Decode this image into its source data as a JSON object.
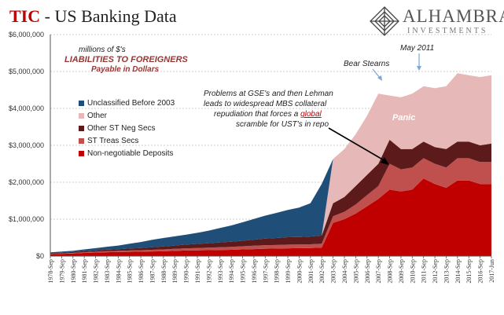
{
  "header": {
    "title_prefix": "TIC",
    "title_rest": " - US Banking Data"
  },
  "logo": {
    "brand": "ALHAMBRA",
    "sub": "INVESTMENTS",
    "icon": "alhambra-diamond-logo-icon"
  },
  "annotations": {
    "units": "millions of $'s",
    "subtitle_line1": "LIABILITIES TO FOREIGNERS",
    "subtitle_line2": "Payable in Dollars",
    "bear_stearns": "Bear Stearns",
    "may_2011": "May 2011",
    "panic": "Panic",
    "problems_line1": "Problems at GSE's and then Lehman",
    "problems_line2": "leads to widespread MBS collateral",
    "problems_line3_pre": "repudiation that forces a ",
    "problems_line3_emph": "global",
    "problems_line4": "scramble for UST's in repo"
  },
  "colors": {
    "unclassified": "#1f4e79",
    "other": "#e6b8b7",
    "other_st_neg": "#5c1a1a",
    "st_treas": "#c0504d",
    "non_negotiable": "#c00000",
    "title_red": "#c00000",
    "subtitle_red": "#953735"
  },
  "chart_data": {
    "type": "area",
    "stacked": true,
    "x": [
      "1978-Sep",
      "1979-Sep",
      "1980-Sep",
      "1981-Sep",
      "1982-Sep",
      "1983-Sep",
      "1984-Sep",
      "1985-Sep",
      "1986-Sep",
      "1987-Sep",
      "1988-Sep",
      "1989-Sep",
      "1990-Sep",
      "1991-Sep",
      "1992-Sep",
      "1993-Sep",
      "1994-Sep",
      "1995-Sep",
      "1996-Sep",
      "1997-Sep",
      "1998-Sep",
      "1999-Sep",
      "2000-Sep",
      "2001-Sep",
      "2002-Sep",
      "2003-Sep",
      "2004-Sep",
      "2005-Sep",
      "2006-Sep",
      "2007-Sep",
      "2008-Sep",
      "2009-Sep",
      "2010-Sep",
      "2011-Sep",
      "2012-Sep",
      "2013-Sep",
      "2014-Sep",
      "2015-Sep",
      "2016-Sep",
      "2017-Jun"
    ],
    "series": [
      {
        "name": "Non-negotiable Deposits",
        "values": [
          50000,
          60000,
          70000,
          85000,
          95000,
          105000,
          110000,
          115000,
          120000,
          125000,
          130000,
          140000,
          150000,
          155000,
          160000,
          165000,
          170000,
          180000,
          190000,
          200000,
          205000,
          210000,
          215000,
          220000,
          230000,
          900000,
          1000000,
          1150000,
          1350000,
          1550000,
          1800000,
          1750000,
          1800000,
          2100000,
          1950000,
          1850000,
          2050000,
          2050000,
          1950000,
          1950000
        ]
      },
      {
        "name": "ST Treas Secs",
        "values": [
          10000,
          12000,
          15000,
          20000,
          25000,
          28000,
          30000,
          35000,
          40000,
          45000,
          50000,
          55000,
          60000,
          65000,
          70000,
          75000,
          80000,
          85000,
          90000,
          95000,
          95000,
          100000,
          100000,
          100000,
          105000,
          180000,
          200000,
          250000,
          300000,
          350000,
          700000,
          600000,
          600000,
          550000,
          550000,
          550000,
          600000,
          600000,
          600000,
          600000
        ]
      },
      {
        "name": "Other ST Neg Secs",
        "values": [
          15000,
          20000,
          25000,
          30000,
          35000,
          40000,
          45000,
          55000,
          60000,
          70000,
          80000,
          90000,
          100000,
          110000,
          120000,
          130000,
          140000,
          150000,
          165000,
          180000,
          190000,
          200000,
          200000,
          210000,
          220000,
          350000,
          400000,
          500000,
          550000,
          600000,
          650000,
          550000,
          500000,
          450000,
          450000,
          500000,
          450000,
          450000,
          450000,
          500000
        ]
      },
      {
        "name": "Other",
        "values": [
          0,
          0,
          0,
          0,
          0,
          0,
          0,
          0,
          0,
          0,
          0,
          0,
          0,
          0,
          0,
          0,
          0,
          0,
          0,
          0,
          0,
          0,
          0,
          0,
          0,
          1200000,
          1300000,
          1400000,
          1600000,
          1900000,
          1200000,
          1400000,
          1500000,
          1500000,
          1600000,
          1700000,
          1850000,
          1800000,
          1850000,
          1850000
        ]
      },
      {
        "name": "Unclassified Before 2003",
        "values": [
          25000,
          30000,
          35000,
          45000,
          60000,
          80000,
          100000,
          130000,
          160000,
          200000,
          230000,
          250000,
          270000,
          300000,
          340000,
          390000,
          440000,
          500000,
          560000,
          620000,
          680000,
          740000,
          800000,
          900000,
          1400000,
          0,
          0,
          0,
          0,
          0,
          0,
          0,
          0,
          0,
          0,
          0,
          0,
          0,
          0,
          0
        ]
      }
    ],
    "legend": [
      "Unclassified Before 2003",
      "Other",
      "Other ST Neg Secs",
      "ST Treas Secs",
      "Non-negotiable Deposits"
    ],
    "legend_position": "left",
    "yticks": [
      "$0",
      "$1,000,000",
      "$2,000,000",
      "$3,000,000",
      "$4,000,000",
      "$5,000,000",
      "$6,000,000"
    ],
    "ylim": [
      0,
      6000000
    ],
    "grid": "horizontal dashed"
  }
}
